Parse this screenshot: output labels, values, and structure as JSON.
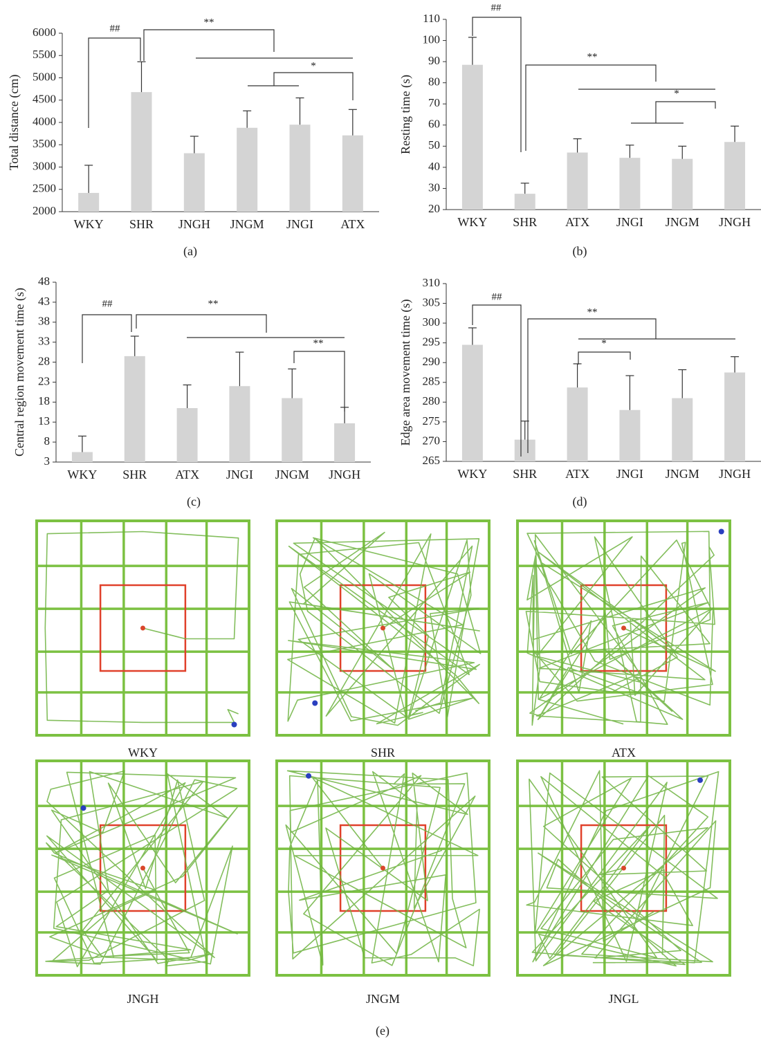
{
  "chart_data": [
    {
      "type": "bar",
      "panel_label": "(a)",
      "ylabel": "Total distance (cm)",
      "categories": [
        "WKY",
        "SHR",
        "JNGH",
        "JNGM",
        "JNGI",
        "ATX"
      ],
      "values": [
        2420,
        4680,
        3310,
        3880,
        3950,
        3710
      ],
      "errors": [
        620,
        680,
        380,
        380,
        600,
        580
      ],
      "color": "#d4d4d4",
      "ylim": [
        2000,
        6000
      ],
      "yticks": [
        2000,
        2500,
        3000,
        3500,
        4000,
        4500,
        5000,
        5500,
        6000
      ],
      "annotations": [
        "##",
        "**",
        "*"
      ]
    },
    {
      "type": "bar",
      "panel_label": "(b)",
      "ylabel": "Resting time (s)",
      "categories": [
        "WKY",
        "SHR",
        "ATX",
        "JNGI",
        "JNGM",
        "JNGH"
      ],
      "values": [
        88.5,
        27.5,
        47,
        44.5,
        44,
        52
      ],
      "errors": [
        13,
        5,
        6.5,
        6,
        6,
        7.5
      ],
      "color": "#d4d4d4",
      "ylim": [
        20,
        110
      ],
      "yticks": [
        20,
        30,
        40,
        50,
        60,
        70,
        80,
        90,
        100,
        110
      ],
      "annotations": [
        "##",
        "**",
        "*"
      ]
    },
    {
      "type": "bar",
      "panel_label": "(c)",
      "ylabel": "Central region movement time (s)",
      "categories": [
        "WKY",
        "SHR",
        "ATX",
        "JNGI",
        "JNGM",
        "JNGH"
      ],
      "values": [
        5.5,
        29.5,
        16.5,
        22,
        19,
        12.7
      ],
      "errors": [
        4,
        5,
        5.8,
        8.5,
        7.3,
        4
      ],
      "color": "#d4d4d4",
      "ylim": [
        3,
        48
      ],
      "yticks": [
        3,
        8,
        13,
        18,
        23,
        28,
        33,
        38,
        43,
        48
      ],
      "annotations": [
        "##",
        "**",
        "**"
      ]
    },
    {
      "type": "bar",
      "panel_label": "(d)",
      "ylabel": "Edge area movement time (s)",
      "categories": [
        "WKY",
        "SHR",
        "ATX",
        "JNGI",
        "JNGM",
        "JNGH"
      ],
      "values": [
        294.5,
        270.5,
        283.7,
        278,
        281,
        287.5
      ],
      "errors": [
        4.3,
        4.7,
        6,
        8.7,
        7.2,
        4
      ],
      "color": "#d4d4d4",
      "ylim": [
        265,
        310
      ],
      "yticks": [
        265,
        270,
        275,
        280,
        285,
        290,
        295,
        300,
        305,
        310
      ],
      "annotations": [
        "##",
        "**",
        "*"
      ]
    }
  ],
  "track_panels": {
    "labels": [
      "WKY",
      "SHR",
      "ATX",
      "JNGH",
      "JNGM",
      "JNGL"
    ],
    "caption": "(e)"
  }
}
